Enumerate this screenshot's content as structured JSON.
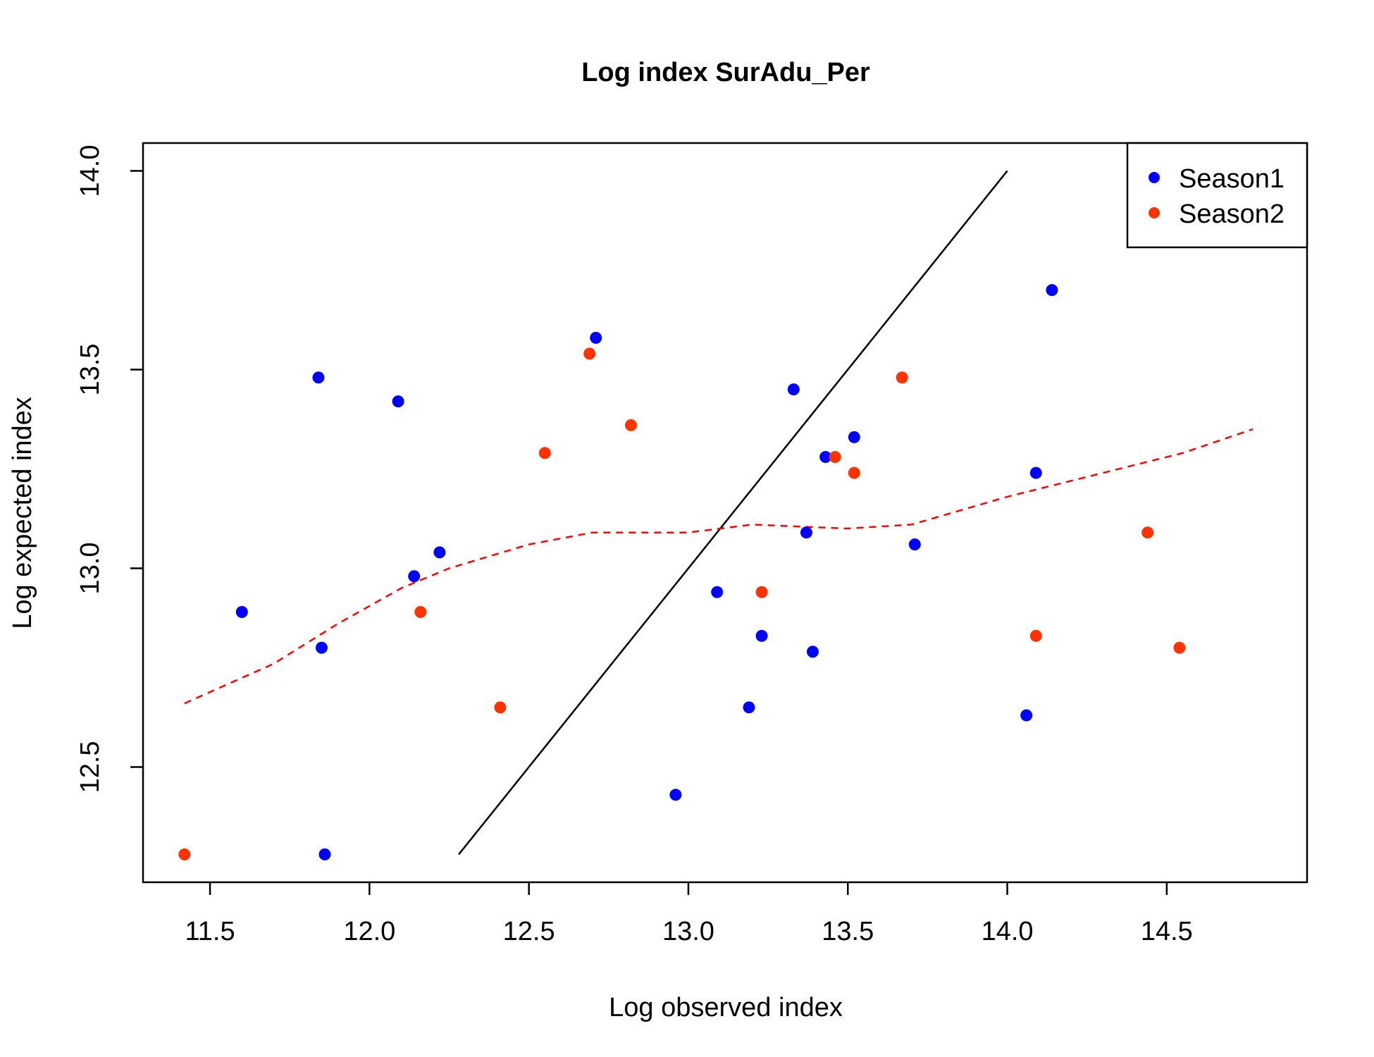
{
  "chart_data": {
    "type": "scatter",
    "title": "Log index SurAdu_Per",
    "xlabel": "Log observed index",
    "ylabel": "Log expected index",
    "xlim": [
      11.29,
      14.94
    ],
    "ylim": [
      12.21,
      14.07
    ],
    "xticks": [
      "11.5",
      "12.0",
      "12.5",
      "13.0",
      "13.5",
      "14.0",
      "14.5"
    ],
    "yticks": [
      "12.5",
      "13.0",
      "13.5",
      "14.0"
    ],
    "grid": false,
    "legend_position": "top-right",
    "series": [
      {
        "name": "Season1",
        "color": "#0000ff",
        "points": [
          [
            11.6,
            12.89
          ],
          [
            11.84,
            13.48
          ],
          [
            11.85,
            12.8
          ],
          [
            11.86,
            12.28
          ],
          [
            12.09,
            13.42
          ],
          [
            12.14,
            12.98
          ],
          [
            12.22,
            13.04
          ],
          [
            12.71,
            13.58
          ],
          [
            12.96,
            12.43
          ],
          [
            13.09,
            12.94
          ],
          [
            13.19,
            12.65
          ],
          [
            13.23,
            12.83
          ],
          [
            13.33,
            13.45
          ],
          [
            13.37,
            13.09
          ],
          [
            13.39,
            12.79
          ],
          [
            13.43,
            13.28
          ],
          [
            13.52,
            13.33
          ],
          [
            13.71,
            13.06
          ],
          [
            14.06,
            12.63
          ],
          [
            14.09,
            13.24
          ],
          [
            14.14,
            13.7
          ]
        ]
      },
      {
        "name": "Season2",
        "color": "#ff3300",
        "points": [
          [
            11.42,
            12.28
          ],
          [
            12.16,
            12.89
          ],
          [
            12.41,
            12.65
          ],
          [
            12.55,
            13.29
          ],
          [
            12.69,
            13.54
          ],
          [
            12.82,
            13.36
          ],
          [
            13.23,
            12.94
          ],
          [
            13.46,
            13.28
          ],
          [
            13.52,
            13.24
          ],
          [
            13.67,
            13.48
          ],
          [
            14.09,
            12.83
          ],
          [
            14.44,
            13.09
          ],
          [
            14.54,
            12.8
          ]
        ]
      }
    ],
    "reference_line": {
      "style": "solid",
      "color": "#000000",
      "points": [
        [
          12.28,
          12.28
        ],
        [
          14.0,
          14.0
        ]
      ]
    },
    "smooth_line": {
      "style": "dashed",
      "color": "#ff0000",
      "points": [
        [
          11.42,
          12.66
        ],
        [
          11.7,
          12.76
        ],
        [
          11.9,
          12.86
        ],
        [
          12.1,
          12.95
        ],
        [
          12.25,
          13.0
        ],
        [
          12.5,
          13.06
        ],
        [
          12.7,
          13.09
        ],
        [
          13.0,
          13.09
        ],
        [
          13.2,
          13.11
        ],
        [
          13.5,
          13.1
        ],
        [
          13.7,
          13.11
        ],
        [
          14.0,
          13.18
        ],
        [
          14.3,
          13.24
        ],
        [
          14.55,
          13.29
        ],
        [
          14.77,
          13.35
        ]
      ]
    }
  }
}
